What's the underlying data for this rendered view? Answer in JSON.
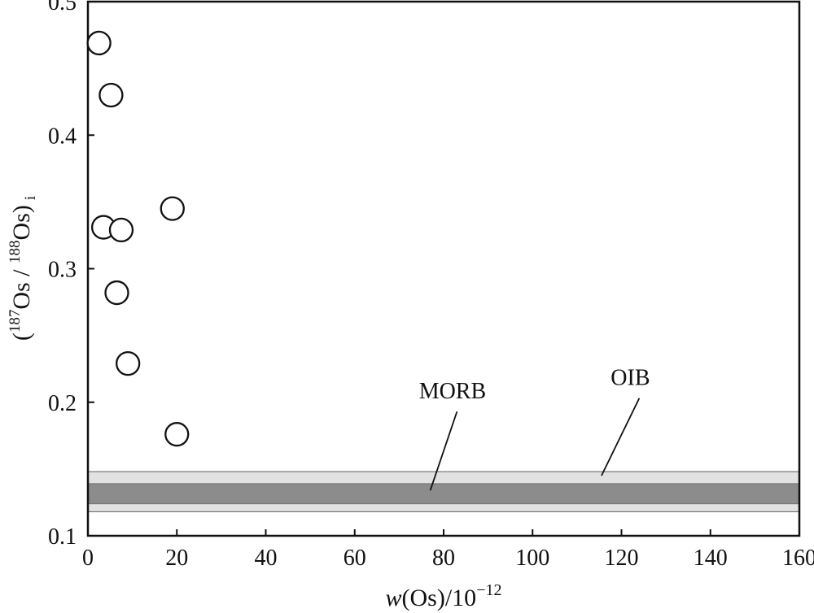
{
  "chart_data": {
    "type": "scatter",
    "xlim": [
      0,
      160
    ],
    "ylim": [
      0.1,
      0.5
    ],
    "x_ticks": [
      0,
      20,
      40,
      60,
      80,
      100,
      120,
      140,
      160
    ],
    "y_ticks": [
      0.1,
      0.2,
      0.3,
      0.4,
      0.5
    ],
    "x_tick_labels": [
      "0",
      "20",
      "40",
      "60",
      "80",
      "100",
      "120",
      "140",
      "160"
    ],
    "y_tick_labels": [
      "0.1",
      "0.2",
      "0.3",
      "0.4",
      "0.5"
    ],
    "xlabel": {
      "italic": "w",
      "main": "(Os)/10",
      "sup": "−12"
    },
    "ylabel": {
      "open": "(",
      "sup1": "187",
      "mid": "Os / ",
      "sup2": "188",
      "close": "Os)",
      "sub": "i"
    },
    "grid": false,
    "points": [
      {
        "x": 2.5,
        "y": 0.469
      },
      {
        "x": 5.2,
        "y": 0.43
      },
      {
        "x": 3.5,
        "y": 0.331
      },
      {
        "x": 7.5,
        "y": 0.329
      },
      {
        "x": 19.0,
        "y": 0.345
      },
      {
        "x": 6.5,
        "y": 0.282
      },
      {
        "x": 9.0,
        "y": 0.229
      },
      {
        "x": 20.0,
        "y": 0.176
      }
    ],
    "bands": [
      {
        "label": "OIB",
        "y_range": [
          0.118,
          0.148
        ],
        "color": "#e2e2e2"
      },
      {
        "label": "MORB",
        "y_range": [
          0.124,
          0.139
        ],
        "color": "#8c8c8c"
      }
    ],
    "annotations": [
      {
        "text": "MORB",
        "text_at": [
          82,
          0.203
        ],
        "line_from": [
          83,
          0.193
        ],
        "line_to": [
          77,
          0.134
        ]
      },
      {
        "text": "OIB",
        "text_at": [
          122,
          0.213
        ],
        "line_from": [
          124,
          0.203
        ],
        "line_to": [
          115.5,
          0.145
        ]
      }
    ]
  }
}
